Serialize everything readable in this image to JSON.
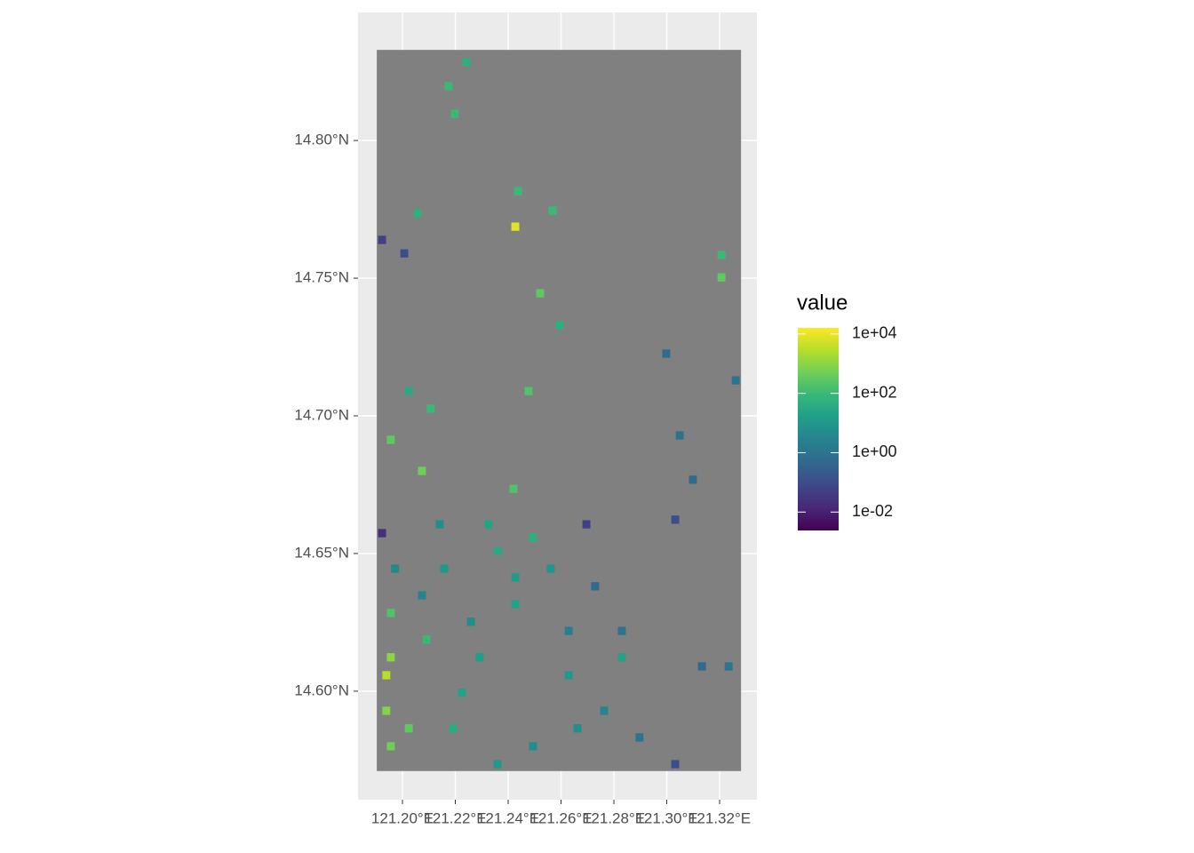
{
  "chart_data": {
    "type": "raster",
    "xlim": [
      121.1832,
      121.3341
    ],
    "ylim": [
      14.5606,
      14.8465
    ],
    "xticks": [
      {
        "value": 121.2,
        "label": "121.20°E"
      },
      {
        "value": 121.22,
        "label": "121.22°E"
      },
      {
        "value": 121.24,
        "label": "121.24°E"
      },
      {
        "value": 121.26,
        "label": "121.26°E"
      },
      {
        "value": 121.28,
        "label": "121.28°E"
      },
      {
        "value": 121.3,
        "label": "121.30°E"
      },
      {
        "value": 121.32,
        "label": "121.32°E"
      }
    ],
    "yticks": [
      {
        "value": 14.6,
        "label": "14.60°N"
      },
      {
        "value": 14.65,
        "label": "14.65°N"
      },
      {
        "value": 14.7,
        "label": "14.70°N"
      },
      {
        "value": 14.75,
        "label": "14.75°N"
      },
      {
        "value": 14.8,
        "label": "14.80°N"
      }
    ],
    "grid": true,
    "panel_color": "#EBEBEB",
    "na_color": "#808080",
    "raster_xlim": [
      121.1903,
      121.3281
    ],
    "raster_ylim": [
      14.571,
      14.8329
    ],
    "cell_size": 0.003,
    "legend_title": "value",
    "fill_log_scale": true,
    "fill_lim": [
      0.0024,
      16000
    ],
    "fill_ticks": [
      {
        "value": 0.01,
        "label": "1e-02"
      },
      {
        "value": 1,
        "label": "1e+00"
      },
      {
        "value": 100,
        "label": "1e+02"
      },
      {
        "value": 10000,
        "label": "1e+04"
      }
    ],
    "cells": [
      [
        121.2427,
        14.7687,
        8000
      ],
      [
        121.2521,
        14.7445,
        300
      ],
      [
        121.2477,
        14.709,
        200
      ],
      [
        121.2074,
        14.68,
        500
      ],
      [
        121.2107,
        14.7026,
        100
      ],
      [
        121.1956,
        14.6913,
        300
      ],
      [
        121.242,
        14.6735,
        200
      ],
      [
        121.2057,
        14.7735,
        50
      ],
      [
        121.2198,
        14.8097,
        100
      ],
      [
        121.2175,
        14.8197,
        100
      ],
      [
        121.2242,
        14.8284,
        50
      ],
      [
        121.2437,
        14.7816,
        100
      ],
      [
        121.2568,
        14.7745,
        100
      ],
      [
        121.3207,
        14.7584,
        100
      ],
      [
        121.3207,
        14.7503,
        300
      ],
      [
        121.2998,
        14.7226,
        0.5
      ],
      [
        121.1923,
        14.7639,
        0.05
      ],
      [
        121.2007,
        14.759,
        0.1
      ],
      [
        121.3261,
        14.7129,
        1
      ],
      [
        121.3049,
        14.6929,
        1
      ],
      [
        121.3099,
        14.6768,
        0.5
      ],
      [
        121.1923,
        14.6574,
        0.02
      ],
      [
        121.1956,
        14.6123,
        1000
      ],
      [
        121.1939,
        14.6058,
        3000
      ],
      [
        121.2024,
        14.5865,
        300
      ],
      [
        121.1956,
        14.58,
        500
      ],
      [
        121.2158,
        14.6445,
        10
      ],
      [
        121.236,
        14.651,
        30
      ],
      [
        121.2494,
        14.6558,
        50
      ],
      [
        121.2259,
        14.6252,
        5
      ],
      [
        121.2427,
        14.6316,
        20
      ],
      [
        121.2225,
        14.5994,
        20
      ],
      [
        121.2629,
        14.6058,
        10
      ],
      [
        121.283,
        14.6123,
        20
      ],
      [
        121.2763,
        14.5929,
        3
      ],
      [
        121.2494,
        14.58,
        5
      ],
      [
        121.236,
        14.5735,
        10
      ],
      [
        121.2897,
        14.5832,
        1
      ],
      [
        121.3133,
        14.609,
        0.5
      ],
      [
        121.3234,
        14.609,
        1
      ],
      [
        121.3032,
        14.5735,
        0.1
      ],
      [
        121.2696,
        14.6606,
        0.05
      ],
      [
        121.3032,
        14.6623,
        0.1
      ],
      [
        121.2141,
        14.6606,
        5
      ],
      [
        121.2074,
        14.6348,
        3
      ],
      [
        121.2629,
        14.6219,
        2
      ],
      [
        121.283,
        14.6219,
        1
      ],
      [
        121.2024,
        14.709,
        30
      ],
      [
        121.2595,
        14.7329,
        50
      ],
      [
        121.1939,
        14.5929,
        800
      ],
      [
        121.2091,
        14.6187,
        100
      ],
      [
        121.1956,
        14.6284,
        200
      ],
      [
        121.2292,
        14.6123,
        15
      ],
      [
        121.2561,
        14.6445,
        8
      ],
      [
        121.2192,
        14.5865,
        40
      ],
      [
        121.2662,
        14.5865,
        6
      ],
      [
        121.2326,
        14.6606,
        25
      ],
      [
        121.1972,
        14.6445,
        4
      ],
      [
        121.2427,
        14.6413,
        12
      ],
      [
        121.2729,
        14.6381,
        0.5
      ]
    ]
  }
}
